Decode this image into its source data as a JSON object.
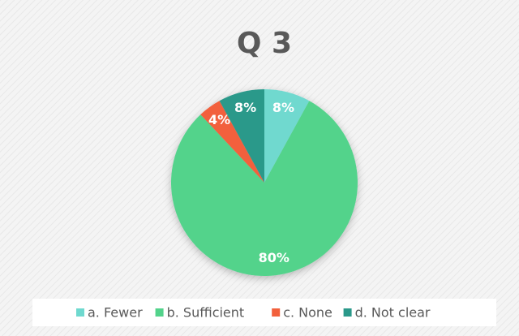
{
  "chart_data": {
    "type": "pie",
    "title": "Q 3",
    "categories": [
      "a. Fewer",
      "b. Sufficient",
      "c. None",
      "d. Not clear"
    ],
    "values": [
      8,
      80,
      4,
      8
    ],
    "value_labels": [
      "8%",
      "80%",
      "4%",
      "8%"
    ],
    "colors": [
      "#6fd9cf",
      "#53d38b",
      "#f2603c",
      "#2b998a"
    ],
    "legend": "bottom"
  }
}
